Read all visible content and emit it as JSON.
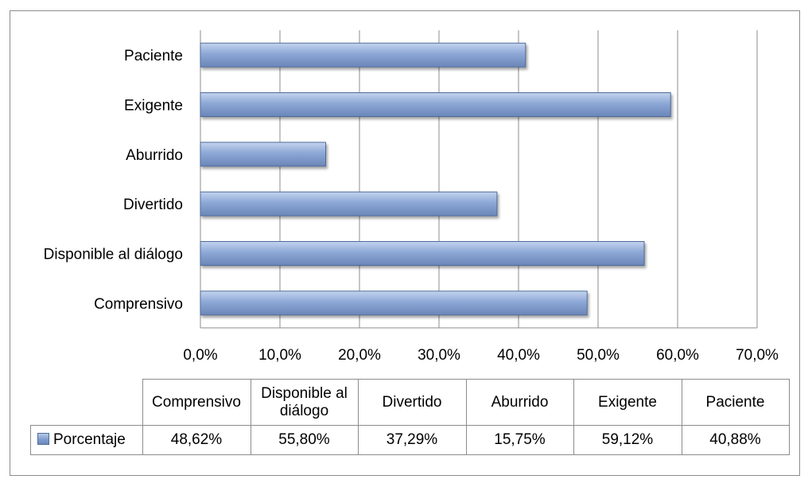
{
  "chart_data": {
    "type": "bar",
    "orientation": "horizontal",
    "categories": [
      "Comprensivo",
      "Disponible al diálogo",
      "Divertido",
      "Aburrido",
      "Exigente",
      "Paciente"
    ],
    "series": [
      {
        "name": "Porcentaje",
        "values": [
          48.62,
          55.8,
          37.29,
          15.75,
          59.12,
          40.88
        ]
      }
    ],
    "value_labels": [
      "48,62%",
      "55,80%",
      "37,29%",
      "15,75%",
      "59,12%",
      "40,88%"
    ],
    "table_headers": [
      "Comprensivo",
      "Disponible al\ndiálogo",
      "Divertido",
      "Aburrido",
      "Exigente",
      "Paciente"
    ],
    "xlim": [
      0,
      70
    ],
    "xticks": [
      "0,0%",
      "10,0%",
      "20,0%",
      "30,0%",
      "40,0%",
      "50,0%",
      "60,0%",
      "70,0%"
    ],
    "grid": true,
    "legend": "data table",
    "bar_color": "#8da8d6",
    "bar_border_color": "#4f6b99"
  }
}
